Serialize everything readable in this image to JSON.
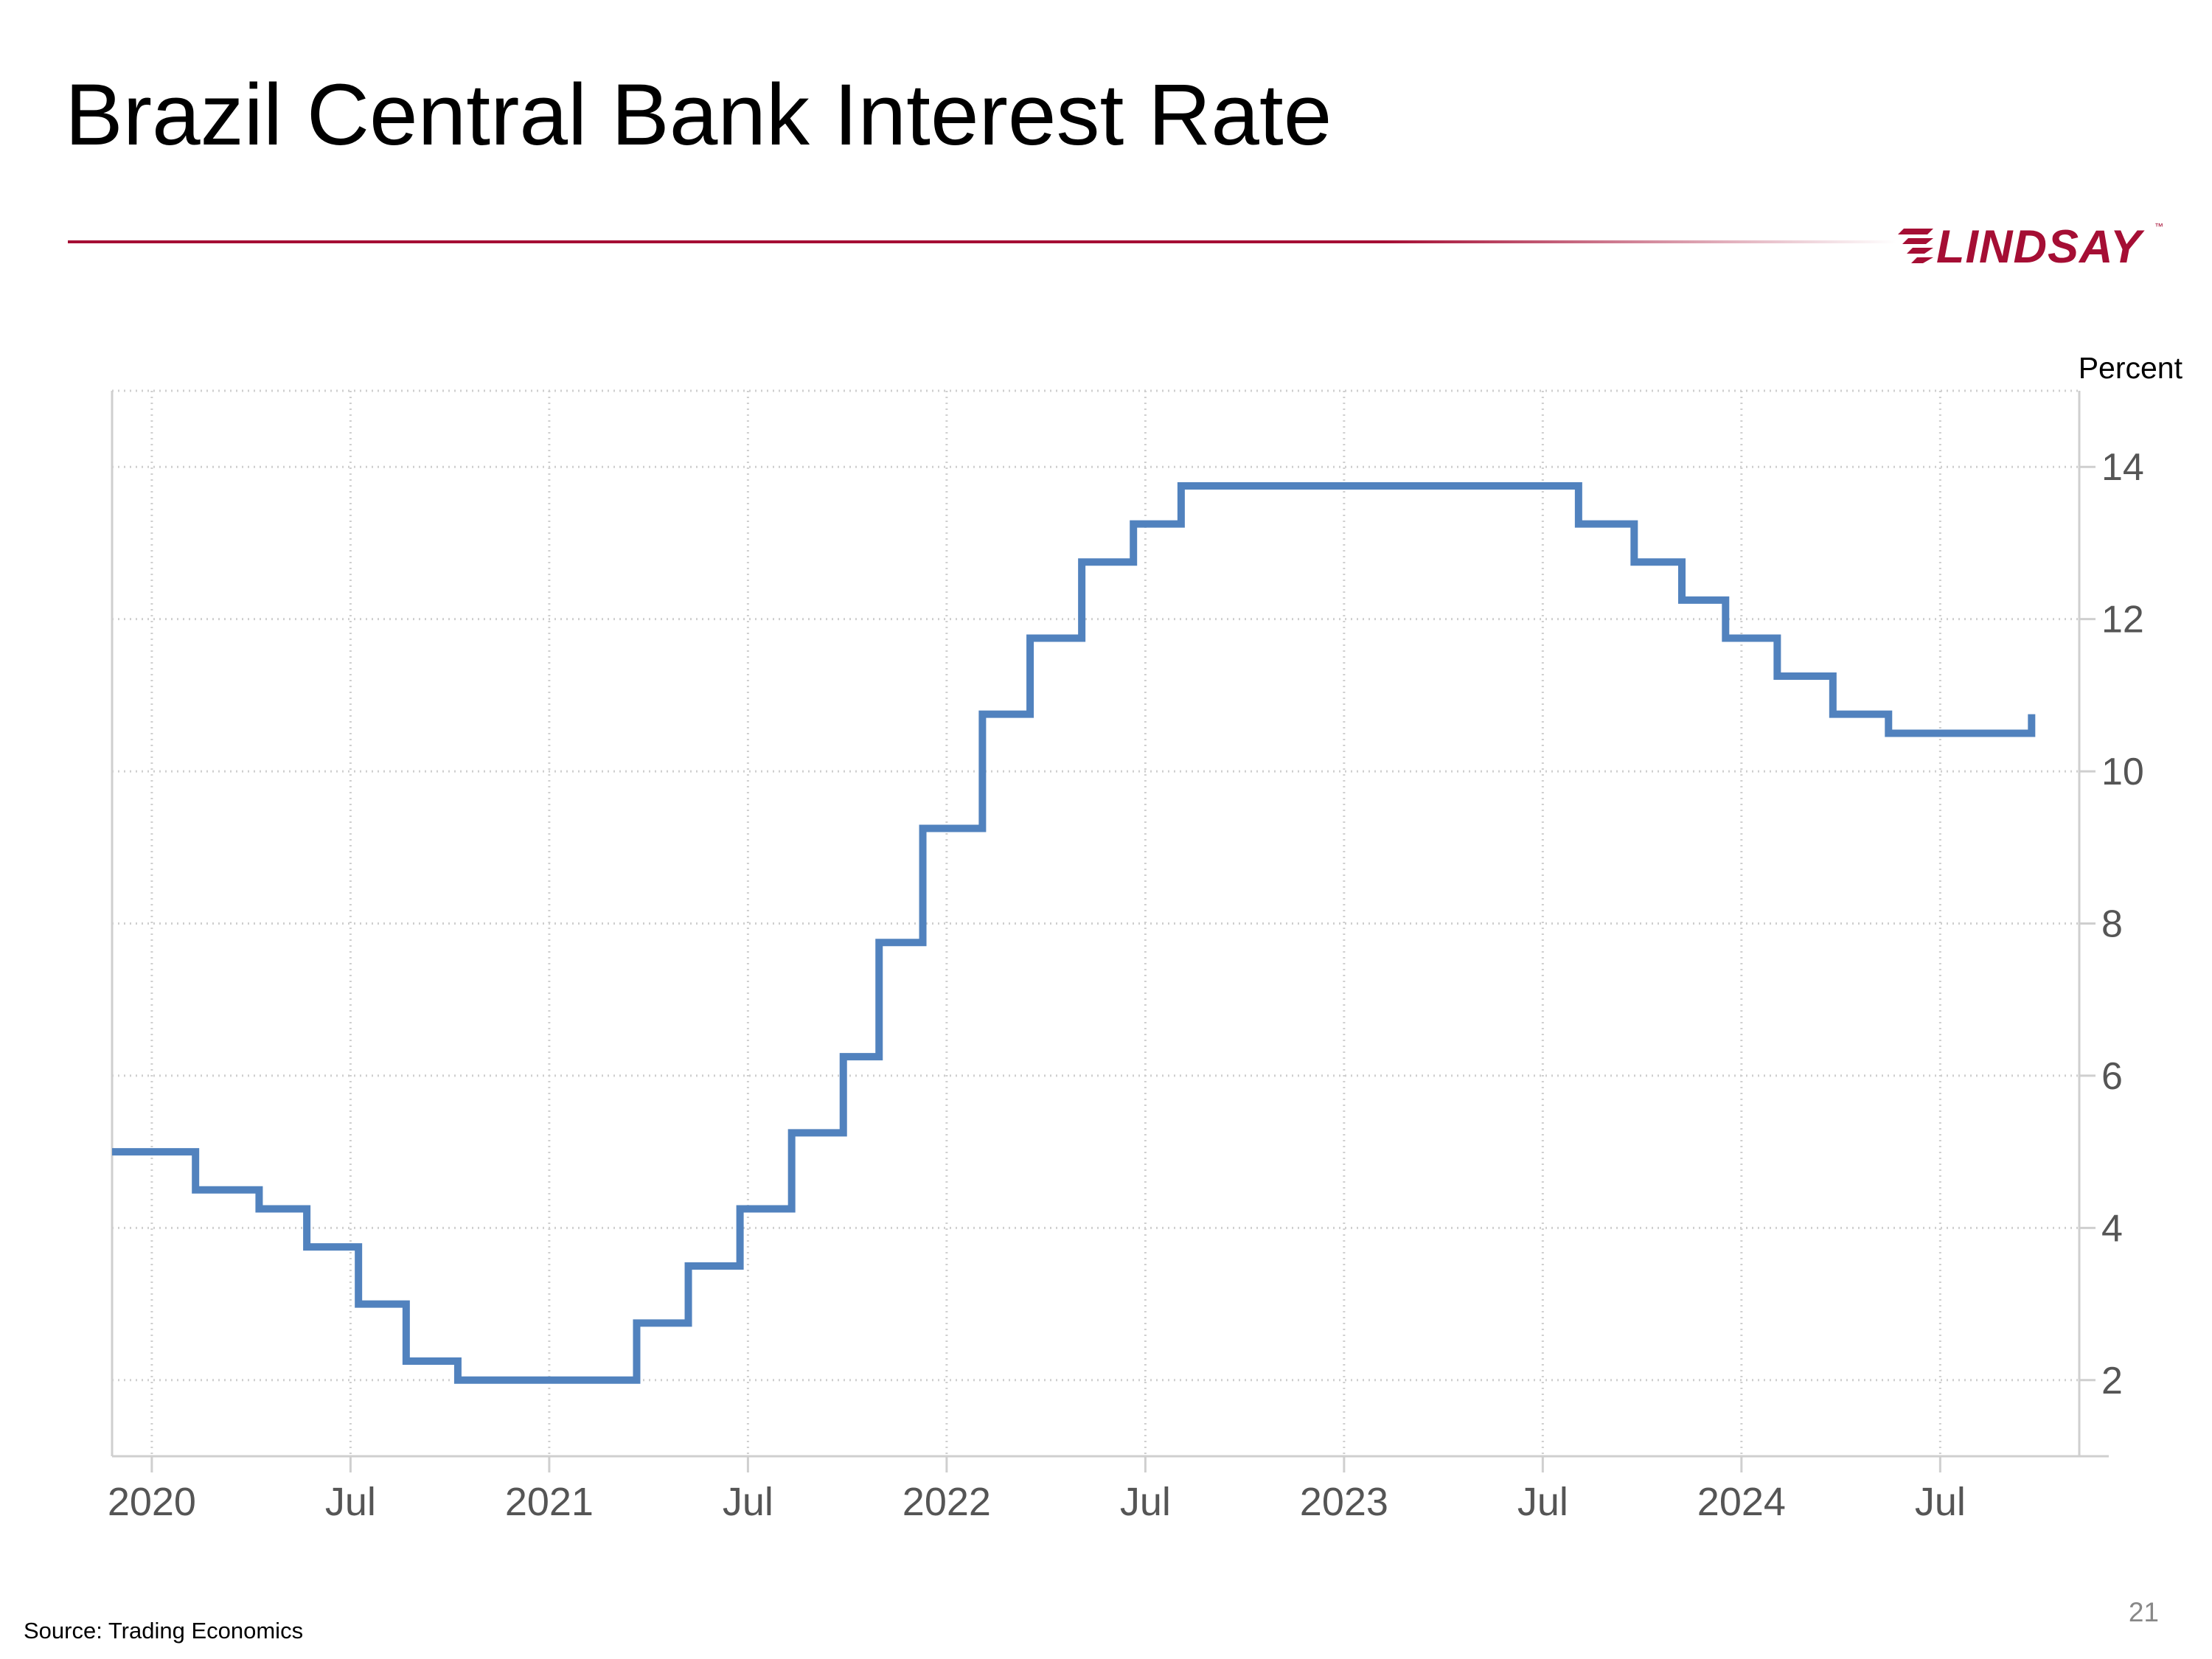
{
  "slide": {
    "title": "Brazil Central Bank Interest Rate",
    "source": "Source: Trading Economics",
    "page_number": "21",
    "accent_color": "#a50e34",
    "logo": {
      "wordmark": "LINDSAY",
      "trademark": "™",
      "color": "#a50e34"
    }
  },
  "chart_data": {
    "type": "line",
    "step": true,
    "title": "Brazil Central Bank Interest Rate",
    "xlabel": "",
    "ylabel": "Percent",
    "line_color": "#5182be",
    "grid": true,
    "y_axis_position": "right",
    "xlim": [
      2019.9,
      2024.85
    ],
    "ylim": [
      1,
      15
    ],
    "x_ticks": [
      {
        "label": "2020",
        "value": 2020.0
      },
      {
        "label": "Jul",
        "value": 2020.5
      },
      {
        "label": "2021",
        "value": 2021.0
      },
      {
        "label": "Jul",
        "value": 2021.5
      },
      {
        "label": "2022",
        "value": 2022.0
      },
      {
        "label": "Jul",
        "value": 2022.5
      },
      {
        "label": "2023",
        "value": 2023.0
      },
      {
        "label": "Jul",
        "value": 2023.5
      },
      {
        "label": "2024",
        "value": 2024.0
      },
      {
        "label": "Jul",
        "value": 2024.5
      }
    ],
    "y_ticks": [
      2,
      4,
      6,
      8,
      10,
      12,
      14
    ],
    "series": [
      {
        "name": "Brazil Central Bank Interest Rate",
        "steps": [
          {
            "x": 2019.9,
            "y": 5.0
          },
          {
            "x": 2020.11,
            "y": 4.5
          },
          {
            "x": 2020.27,
            "y": 4.25
          },
          {
            "x": 2020.39,
            "y": 3.75
          },
          {
            "x": 2020.52,
            "y": 3.0
          },
          {
            "x": 2020.64,
            "y": 2.25
          },
          {
            "x": 2020.77,
            "y": 2.0
          },
          {
            "x": 2021.22,
            "y": 2.75
          },
          {
            "x": 2021.35,
            "y": 3.5
          },
          {
            "x": 2021.48,
            "y": 4.25
          },
          {
            "x": 2021.61,
            "y": 5.25
          },
          {
            "x": 2021.74,
            "y": 6.25
          },
          {
            "x": 2021.83,
            "y": 7.75
          },
          {
            "x": 2021.94,
            "y": 9.25
          },
          {
            "x": 2022.09,
            "y": 10.75
          },
          {
            "x": 2022.21,
            "y": 11.75
          },
          {
            "x": 2022.34,
            "y": 12.75
          },
          {
            "x": 2022.47,
            "y": 13.25
          },
          {
            "x": 2022.59,
            "y": 13.75
          },
          {
            "x": 2023.59,
            "y": 13.25
          },
          {
            "x": 2023.73,
            "y": 12.75
          },
          {
            "x": 2023.85,
            "y": 12.25
          },
          {
            "x": 2023.96,
            "y": 11.75
          },
          {
            "x": 2024.09,
            "y": 11.25
          },
          {
            "x": 2024.23,
            "y": 10.75
          },
          {
            "x": 2024.37,
            "y": 10.5
          },
          {
            "x": 2024.73,
            "y": 10.75
          }
        ],
        "end_x": 2024.73
      }
    ]
  }
}
